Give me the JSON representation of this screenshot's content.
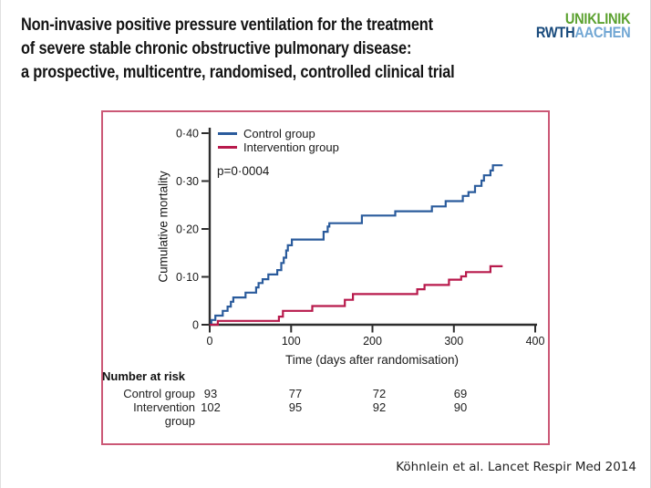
{
  "slide": {
    "title_lines": [
      "Non-invasive positive pressure ventilation for the treatment",
      "of severe stable chronic obstructive pulmonary disease:",
      "a prospective, multicentre, randomised, controlled clinical trial"
    ],
    "citation": "Köhnlein et al. Lancet Respir Med 2014"
  },
  "logo": {
    "line1": "UNIKLINIK",
    "line2_bold": "RWTH",
    "line2_light": "AACHEN",
    "green": "#5ba12f",
    "navy": "#17497b",
    "light_blue": "#72a7d4"
  },
  "chart_data": {
    "type": "line",
    "subtype": "kaplan-meier-step",
    "title": "",
    "xlabel": "Time (days after randomisation)",
    "ylabel": "Cumulative mortality",
    "xlim": [
      0,
      400
    ],
    "ylim": [
      0,
      0.4
    ],
    "x_ticks": [
      0,
      100,
      200,
      300,
      400
    ],
    "x_tick_labels": [
      "0",
      "100",
      "200",
      "300",
      "400"
    ],
    "y_ticks": [
      0,
      0.1,
      0.2,
      0.3,
      0.4
    ],
    "y_tick_labels": [
      "0",
      "0·10",
      "0·20",
      "0·30",
      "0·40"
    ],
    "annotation": "p=0·0004",
    "legend_position": "top-left-inside",
    "grid": false,
    "axis_color": "#2d2d2d",
    "frame_color": "#cb5876",
    "series": [
      {
        "name": "Control group",
        "color": "#2a5b9c",
        "points": [
          [
            0,
            0
          ],
          [
            2,
            0.01
          ],
          [
            7,
            0.019
          ],
          [
            16,
            0.029
          ],
          [
            22,
            0.038
          ],
          [
            26,
            0.048
          ],
          [
            29,
            0.057
          ],
          [
            44,
            0.067
          ],
          [
            57,
            0.078
          ],
          [
            60,
            0.087
          ],
          [
            65,
            0.095
          ],
          [
            72,
            0.105
          ],
          [
            83,
            0.114
          ],
          [
            88,
            0.129
          ],
          [
            91,
            0.14
          ],
          [
            94,
            0.155
          ],
          [
            96,
            0.166
          ],
          [
            101,
            0.178
          ],
          [
            140,
            0.194
          ],
          [
            145,
            0.205
          ],
          [
            147,
            0.212
          ],
          [
            187,
            0.228
          ],
          [
            228,
            0.237
          ],
          [
            273,
            0.247
          ],
          [
            290,
            0.258
          ],
          [
            311,
            0.269
          ],
          [
            318,
            0.277
          ],
          [
            326,
            0.29
          ],
          [
            334,
            0.301
          ],
          [
            337,
            0.312
          ],
          [
            345,
            0.322
          ],
          [
            348,
            0.333
          ],
          [
            360,
            0.333
          ]
        ]
      },
      {
        "name": "Intervention group",
        "color": "#b81a4c",
        "points": [
          [
            0,
            0
          ],
          [
            10,
            0.008
          ],
          [
            85,
            0.017
          ],
          [
            90,
            0.029
          ],
          [
            126,
            0.039
          ],
          [
            166,
            0.052
          ],
          [
            176,
            0.064
          ],
          [
            255,
            0.074
          ],
          [
            264,
            0.083
          ],
          [
            294,
            0.094
          ],
          [
            309,
            0.101
          ],
          [
            315,
            0.11
          ],
          [
            345,
            0.122
          ],
          [
            360,
            0.122
          ]
        ]
      }
    ]
  },
  "risk_table": {
    "heading": "Number at risk",
    "rows": [
      {
        "label": "Control group",
        "label2": "",
        "values": [
          "93",
          "77",
          "72",
          "69"
        ]
      },
      {
        "label": "Intervention",
        "label2": "group",
        "values": [
          "102",
          "95",
          "92",
          "90"
        ]
      }
    ]
  }
}
